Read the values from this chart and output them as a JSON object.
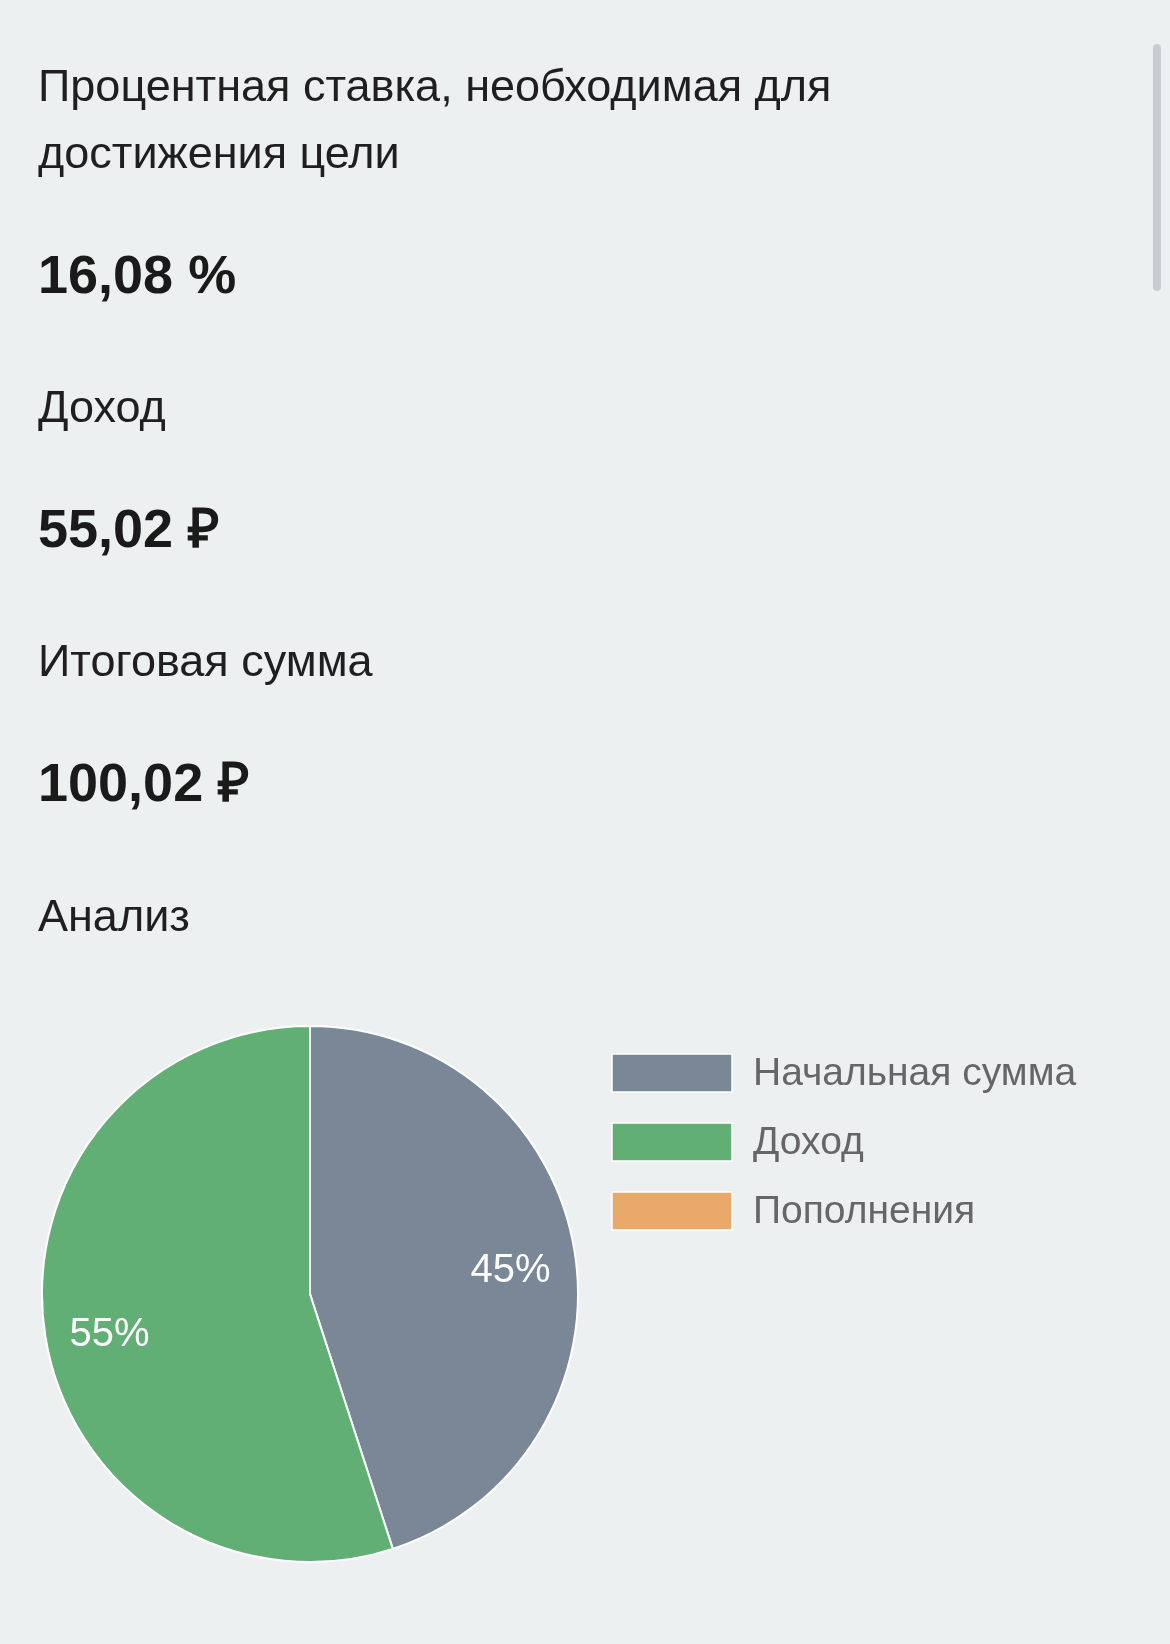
{
  "chart_data": [
    {
      "type": "other",
      "annotations": [
        "Процентная ставка, необходимая для достижения цели",
        "16,08 %",
        "Доход",
        "55,02 ₽",
        "Итоговая сумма",
        "100,02 ₽"
      ]
    },
    {
      "type": "pie",
      "title": "Анализ",
      "categories": [
        "Начальная сумма",
        "Доход",
        "Пополнения"
      ],
      "values": [
        45,
        55,
        0
      ],
      "colors": [
        "#7a8797",
        "#62af76",
        "#e8a96a"
      ],
      "value_labels": [
        "45%",
        "55%",
        null
      ],
      "legend": "top right"
    }
  ]
}
